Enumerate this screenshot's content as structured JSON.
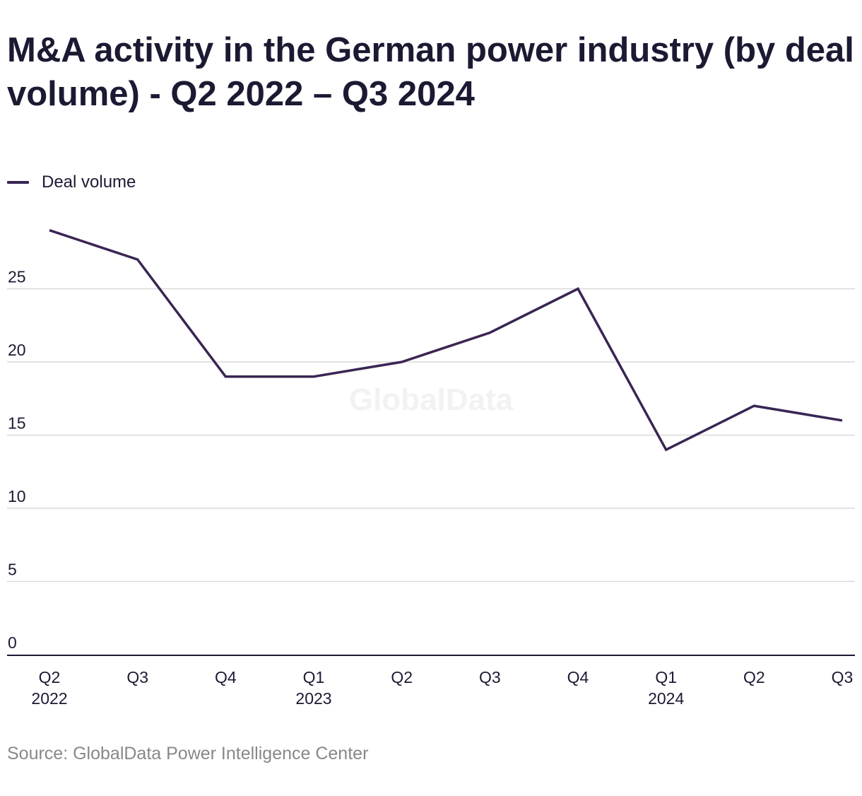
{
  "title": "M&A activity in the German power industry (by deal volume) - Q2 2022 – Q3 2024",
  "legend": {
    "label": "Deal volume"
  },
  "watermark": "GlobalData",
  "source": "Source: GlobalData Power Intelligence Center",
  "colors": {
    "line": "#3a2553",
    "grid": "#d9d9d9",
    "axis": "#1b1a33",
    "text": "#1b1a33",
    "muted": "#888888"
  },
  "chart_data": {
    "type": "line",
    "categories": [
      "Q2 2022",
      "Q3 2022",
      "Q4 2022",
      "Q1 2023",
      "Q2 2023",
      "Q3 2023",
      "Q4 2023",
      "Q1 2024",
      "Q2 2024",
      "Q3 2024"
    ],
    "tick_labels": [
      [
        "Q2",
        "2022"
      ],
      [
        "Q3"
      ],
      [
        "Q4"
      ],
      [
        "Q1",
        "2023"
      ],
      [
        "Q2"
      ],
      [
        "Q3"
      ],
      [
        "Q4"
      ],
      [
        "Q1",
        "2024"
      ],
      [
        "Q2"
      ],
      [
        "Q3"
      ]
    ],
    "series": [
      {
        "name": "Deal volume",
        "values": [
          29,
          27,
          19,
          19,
          20,
          22,
          25,
          14,
          17,
          16
        ]
      }
    ],
    "yticks": [
      0,
      5,
      10,
      15,
      20,
      25
    ],
    "ylim": [
      0,
      30
    ],
    "grid": true,
    "legend_position": "top-left"
  }
}
